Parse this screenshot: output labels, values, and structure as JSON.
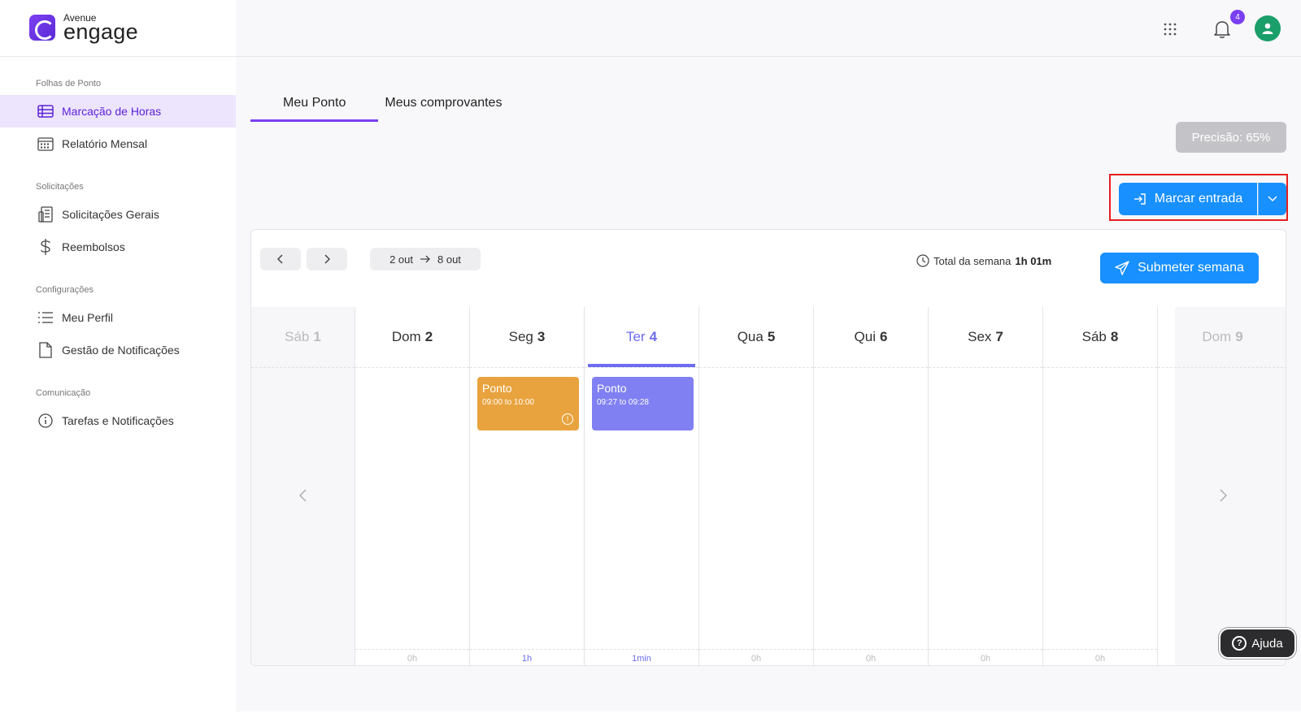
{
  "brand": {
    "small": "Avenue",
    "big": "engage"
  },
  "sidebar": {
    "sections": [
      {
        "title": "Folhas de Ponto",
        "items": [
          {
            "label": "Marcação de Horas",
            "icon": "timesheet-icon",
            "active": true
          },
          {
            "label": "Relatório Mensal",
            "icon": "calendar-icon",
            "active": false
          }
        ]
      },
      {
        "title": "Solicitações",
        "items": [
          {
            "label": "Solicitações Gerais",
            "icon": "requests-icon",
            "active": false
          },
          {
            "label": "Reembolsos",
            "icon": "dollar-icon",
            "active": false
          }
        ]
      },
      {
        "title": "Configurações",
        "items": [
          {
            "label": "Meu Perfil",
            "icon": "list-icon",
            "active": false
          },
          {
            "label": "Gestão de Notificações",
            "icon": "document-icon",
            "active": false
          }
        ]
      },
      {
        "title": "Comunicação",
        "items": [
          {
            "label": "Tarefas e Notificações",
            "icon": "info-icon",
            "active": false
          }
        ]
      }
    ]
  },
  "header": {
    "notification_count": "4"
  },
  "tabs": [
    {
      "label": "Meu Ponto",
      "active": true
    },
    {
      "label": "Meus comprovantes",
      "active": false
    }
  ],
  "precision": "Precisão: 65%",
  "clock_in": {
    "label": "Marcar entrada"
  },
  "week": {
    "range_start": "2 out",
    "range_end": "8 out",
    "total_label": "Total da semana",
    "total_value": "1h 01m",
    "submit_label": "Submeter semana",
    "days": [
      {
        "name": "Sáb",
        "num": "1",
        "total": "",
        "state": "outside"
      },
      {
        "name": "Dom",
        "num": "2",
        "total": "0h",
        "state": "normal"
      },
      {
        "name": "Seg",
        "num": "3",
        "total": "1h",
        "state": "normal"
      },
      {
        "name": "Ter",
        "num": "4",
        "total": "1min",
        "state": "today"
      },
      {
        "name": "Qua",
        "num": "5",
        "total": "0h",
        "state": "normal"
      },
      {
        "name": "Qui",
        "num": "6",
        "total": "0h",
        "state": "normal"
      },
      {
        "name": "Sex",
        "num": "7",
        "total": "0h",
        "state": "normal"
      },
      {
        "name": "Sáb",
        "num": "8",
        "total": "0h",
        "state": "normal"
      },
      {
        "name": "Dom",
        "num": "9",
        "total": "",
        "state": "outside"
      }
    ],
    "events": [
      {
        "title": "Ponto",
        "time": "09:00 to 10:00",
        "color": "#e8a33e",
        "warning": true
      },
      {
        "title": "Ponto",
        "time": "09:27 to 09:28",
        "color": "#8080f2",
        "warning": false
      }
    ]
  },
  "help_label": "Ajuda",
  "colors": {
    "accent": "#7b3ff2",
    "primary_button": "#1890ff",
    "today": "#6d6df0",
    "highlight_box": "#e5201e"
  }
}
